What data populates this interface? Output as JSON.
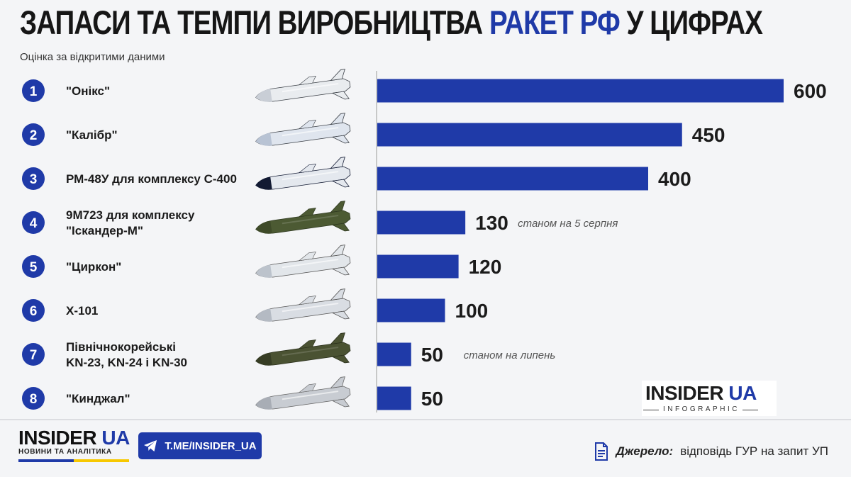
{
  "header": {
    "title_part1": "ЗАПАСИ ТА ТЕМПИ ВИРОБНИЦТВА ",
    "title_accent": "РАКЕТ РФ",
    "title_part2": " У ЦИФРАХ",
    "subtitle": "Оцінка за відкритими даними"
  },
  "chart_data": {
    "type": "bar",
    "orientation": "horizontal",
    "title": "ЗАПАСИ ТА ТЕМПИ ВИРОБНИЦТВА РАКЕТ РФ У ЦИФРАХ",
    "subtitle": "Оцінка за відкритими даними",
    "xlim": [
      0,
      600
    ],
    "grid": false,
    "bar_color": "#1f3aa8",
    "categories": [
      {
        "rank": "1",
        "lines": [
          "\"Онікс\""
        ],
        "value": 600,
        "note": "",
        "icon": "missile-onyx-icon"
      },
      {
        "rank": "2",
        "lines": [
          "\"Калібр\""
        ],
        "value": 450,
        "note": "",
        "icon": "missile-kalibr-icon"
      },
      {
        "rank": "3",
        "lines": [
          "РМ-48У для комплексу С-400"
        ],
        "value": 400,
        "note": "",
        "icon": "missile-48n6-icon"
      },
      {
        "rank": "4",
        "lines": [
          "9М723 для комплексу",
          "\"Іскандер-М\""
        ],
        "value": 130,
        "note": "станом на 5 серпня",
        "icon": "missile-iskander-icon"
      },
      {
        "rank": "5",
        "lines": [
          "\"Циркон\""
        ],
        "value": 120,
        "note": "",
        "icon": "missile-zircon-icon"
      },
      {
        "rank": "6",
        "lines": [
          "Х-101"
        ],
        "value": 100,
        "note": "",
        "icon": "missile-kh101-icon"
      },
      {
        "rank": "7",
        "lines": [
          "Північнокорейські",
          "KN-23, KN-24 і KN-30"
        ],
        "value": 50,
        "note": "станом на липень",
        "icon": "missile-kn23-icon"
      },
      {
        "rank": "8",
        "lines": [
          "\"Кинджал\""
        ],
        "value": 50,
        "note": "",
        "icon": "missile-kinzhal-icon"
      }
    ]
  },
  "watermark": {
    "brand": "INSIDER",
    "brand_ua": "UA",
    "sub": "INFOGRAPHIC"
  },
  "footer": {
    "brand": "INSIDER",
    "brand_ua": "UA",
    "tagline": "НОВИНИ ТА АНАЛІТИКА",
    "telegram_label": "T.ME/INSIDER_UA",
    "telegram_icon": "telegram-icon",
    "source_icon": "document-icon",
    "source_label": "Джерело:",
    "source_text": "відповідь ГУР на запит УП"
  },
  "colors": {
    "accent": "#1f3aa8",
    "flag_yellow": "#f7c800"
  }
}
